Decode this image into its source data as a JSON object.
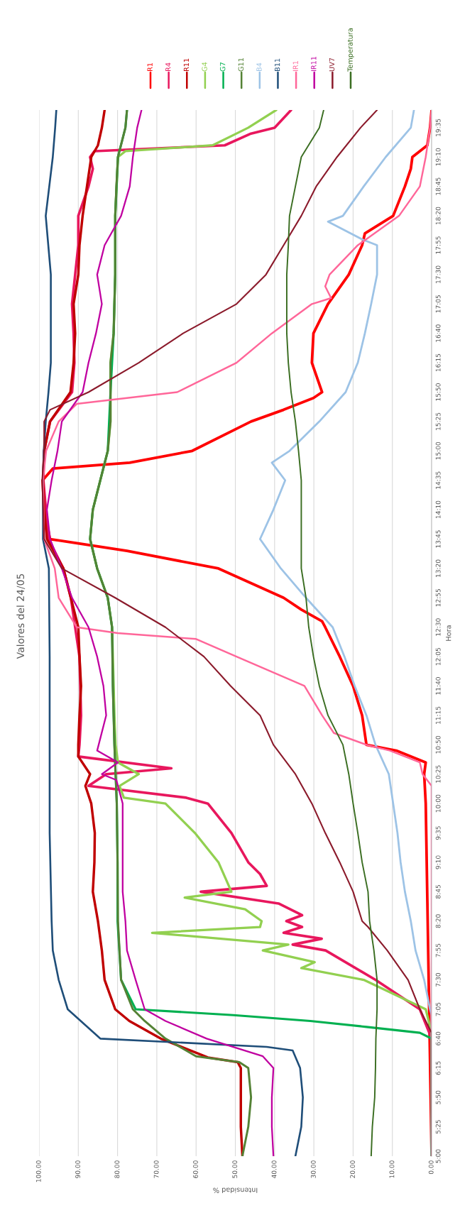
{
  "chart_data": {
    "type": "line",
    "orientation": "horizontal",
    "title": "Valores del 24/05",
    "xlabel": "Intensidad %",
    "ylabel": "Hora",
    "xlim": [
      100,
      0
    ],
    "ylim": [
      5,
      19.833
    ],
    "yticks": [
      {
        "value": 5,
        "label": "5:00"
      },
      {
        "value": 5.417,
        "label": "5:25"
      },
      {
        "value": 5.833,
        "label": "5:50"
      },
      {
        "value": 6.25,
        "label": "6:15"
      },
      {
        "value": 6.667,
        "label": "6:40"
      },
      {
        "value": 7.083,
        "label": "7:05"
      },
      {
        "value": 7.5,
        "label": "7:30"
      },
      {
        "value": 7.917,
        "label": "7:55"
      },
      {
        "value": 8.333,
        "label": "8:20"
      },
      {
        "value": 8.75,
        "label": "8:45"
      },
      {
        "value": 9.167,
        "label": "9:10"
      },
      {
        "value": 9.583,
        "label": "9:35"
      },
      {
        "value": 10,
        "label": "10:00"
      },
      {
        "value": 10.417,
        "label": "10:25"
      },
      {
        "value": 10.833,
        "label": "10:50"
      },
      {
        "value": 11.25,
        "label": "11:15"
      },
      {
        "value": 11.667,
        "label": "11:40"
      },
      {
        "value": 12.083,
        "label": "12:05"
      },
      {
        "value": 12.5,
        "label": "12:30"
      },
      {
        "value": 12.917,
        "label": "12:55"
      },
      {
        "value": 13.333,
        "label": "13:20"
      },
      {
        "value": 13.75,
        "label": "13:45"
      },
      {
        "value": 14.167,
        "label": "14:10"
      },
      {
        "value": 14.583,
        "label": "14:35"
      },
      {
        "value": 15,
        "label": "15:00"
      },
      {
        "value": 15.417,
        "label": "15:25"
      },
      {
        "value": 15.833,
        "label": "15:50"
      },
      {
        "value": 16.25,
        "label": "16:15"
      },
      {
        "value": 16.667,
        "label": "16:40"
      },
      {
        "value": 17.083,
        "label": "17:05"
      },
      {
        "value": 17.5,
        "label": "17:30"
      },
      {
        "value": 17.917,
        "label": "17:55"
      },
      {
        "value": 18.333,
        "label": "18:20"
      },
      {
        "value": 18.75,
        "label": "18:45"
      },
      {
        "value": 19.167,
        "label": "19:10"
      },
      {
        "value": 19.583,
        "label": "19:35"
      }
    ],
    "xticks": [
      {
        "value": 0,
        "label": "0.00"
      },
      {
        "value": 10,
        "label": "10.00"
      },
      {
        "value": 20,
        "label": "20.00"
      },
      {
        "value": 30,
        "label": "30.00"
      },
      {
        "value": 40,
        "label": "40.00"
      },
      {
        "value": 50,
        "label": "50.00"
      },
      {
        "value": 60,
        "label": "60.00"
      },
      {
        "value": 70,
        "label": "70.00"
      },
      {
        "value": 80,
        "label": "80.00"
      },
      {
        "value": 90,
        "label": "90.00"
      },
      {
        "value": 100,
        "label": "100.00"
      }
    ],
    "grid": "x",
    "legend": "right",
    "marker": "none",
    "line_style": "solid",
    "series": [
      {
        "name": "R1",
        "color": "#ff0000",
        "x": [
          5,
          10,
          10.417,
          10.583,
          10.75,
          10.833,
          11.25,
          11.667,
          12.083,
          12.5,
          12.583,
          12.75,
          12.917,
          13.333,
          13.583,
          13.75,
          14.167,
          14.583,
          14.75,
          14.833,
          15,
          15.417,
          15.583,
          15.75,
          15.833,
          16.25,
          16.667,
          17.083,
          17.5,
          17.917,
          18.083,
          18.333,
          18.75,
          19,
          19.167,
          19.333,
          19.583,
          19.833
        ],
        "values": [
          0,
          1.5,
          1.9,
          1.5,
          9,
          16.6,
          17.7,
          20,
          23.4,
          27.1,
          27.9,
          33.2,
          37.7,
          54.3,
          77.6,
          97.2,
          98.7,
          99.1,
          96.5,
          76.9,
          61,
          46,
          37.7,
          30.1,
          27.9,
          30.5,
          30.1,
          26.4,
          21.1,
          17.7,
          17,
          9.8,
          6.8,
          5.3,
          4.9,
          1.1,
          0.4,
          0
        ]
      },
      {
        "name": "R4",
        "color": "#e8175d",
        "x": [
          5,
          6.667,
          7.083,
          7.5,
          7.917,
          8,
          8.083,
          8.167,
          8.25,
          8.333,
          8.417,
          8.583,
          8.75,
          8.833,
          9,
          9.167,
          9.583,
          10,
          10.083,
          10.25,
          10.417,
          10.5,
          10.667,
          10.833,
          11.25,
          12.083,
          12.5,
          12.917,
          13.333,
          13.75,
          14.583,
          15,
          15.417,
          15.833,
          16.25,
          16.667,
          17.083,
          17.5,
          17.917,
          18.333,
          18.75,
          19,
          19.167,
          19.25,
          19.333,
          19.5,
          19.583,
          19.833
        ],
        "values": [
          0,
          0,
          3,
          14.3,
          27,
          35.4,
          28,
          37.7,
          33,
          37,
          33,
          39,
          58.8,
          42,
          43.7,
          46.7,
          51,
          57,
          62.5,
          87.4,
          82.9,
          66.3,
          90,
          89.7,
          89.3,
          89.7,
          90.8,
          91.9,
          93.8,
          97.6,
          98.9,
          98.7,
          97.2,
          91.6,
          91,
          91.2,
          91.6,
          90.8,
          90,
          90,
          87.4,
          86.3,
          87,
          85.9,
          52.7,
          46,
          40,
          35.8
        ]
      },
      {
        "name": "R11",
        "color": "#c00000",
        "x": [
          5,
          5.417,
          5.833,
          6.25,
          6.333,
          6.4,
          6.667,
          6.917,
          7.083,
          7.5,
          7.917,
          8.333,
          8.75,
          9.167,
          9.583,
          10,
          10.25,
          10.417,
          10.667,
          10.833,
          11.25,
          11.667,
          12.083,
          12.5,
          12.917,
          13.333,
          13.75,
          14.167,
          14.583,
          15,
          15.417,
          15.833,
          16.25,
          16.667,
          17.083,
          17.5,
          17.917,
          18.333,
          18.75,
          19.167,
          19.333,
          19.583,
          19.833
        ],
        "values": [
          48.2,
          48.6,
          48.6,
          48.6,
          49.4,
          57,
          69,
          77,
          80.6,
          83.3,
          84,
          85,
          86.3,
          85.9,
          85.8,
          86.7,
          88.2,
          87,
          90,
          90,
          89.7,
          89.3,
          89.7,
          90,
          91.9,
          93.8,
          98,
          98.7,
          99,
          98.7,
          97.2,
          92,
          91.2,
          90.8,
          91.2,
          90,
          89.7,
          88.9,
          87.8,
          86.7,
          85,
          84,
          83.3
        ]
      },
      {
        "name": "G4",
        "color": "#92d050",
        "x": [
          5,
          6.75,
          7.083,
          7.5,
          7.667,
          7.75,
          7.917,
          8,
          8.167,
          8.25,
          8.333,
          8.5,
          8.667,
          8.75,
          9.167,
          9.583,
          10,
          10.083,
          10.25,
          10.417,
          10.583,
          10.833,
          11.25,
          11.667,
          12.083,
          12.5,
          12.917,
          13.333,
          13.75,
          14.167,
          14.583,
          15,
          15.417,
          15.833,
          16.25,
          16.667,
          17.5,
          18.333,
          19.167,
          19.25,
          19.333,
          19.5,
          19.583,
          19.833
        ],
        "values": [
          0,
          0,
          1.5,
          17.3,
          33.2,
          29.8,
          43,
          36.5,
          71.2,
          43.7,
          43.3,
          47.5,
          62.9,
          51,
          54.3,
          60.3,
          67.8,
          78.4,
          79.5,
          74.6,
          79.9,
          80.5,
          80.8,
          81,
          81.2,
          81.4,
          82.5,
          85.2,
          87,
          86.3,
          84.4,
          82.5,
          81.8,
          81.8,
          81.8,
          81,
          80.6,
          80.6,
          79.9,
          78,
          55.8,
          49.7,
          46.7,
          39.6
        ]
      },
      {
        "name": "G7",
        "color": "#00b050",
        "x": [
          5,
          6.667,
          6.75,
          6.833,
          6.917,
          7,
          7.083,
          7.5,
          8.333,
          9.167,
          10,
          10.833,
          11.667,
          12.5,
          12.917,
          13.333,
          13.75,
          14.167,
          14.583,
          15,
          15.833,
          16.667,
          17.5,
          18.333,
          19.167,
          19.583,
          19.833
        ],
        "values": [
          0,
          0,
          3,
          16.6,
          30.9,
          50.5,
          75.4,
          79.1,
          80,
          80,
          80.2,
          80.8,
          81.2,
          81.4,
          82.5,
          85.2,
          87,
          86.3,
          84.4,
          82.5,
          81.8,
          81,
          80.6,
          80.6,
          79.9,
          78,
          77.6
        ]
      },
      {
        "name": "G11",
        "color": "#548235",
        "x": [
          5,
          5.417,
          5.833,
          6.25,
          6.333,
          6.417,
          6.667,
          6.917,
          7.083,
          7.5,
          7.917,
          8.333,
          9.167,
          10,
          10.833,
          11.667,
          12.5,
          12.917,
          13.333,
          13.75,
          14.167,
          14.583,
          15,
          15.417,
          15.833,
          16.25,
          16.667,
          17.5,
          18.333,
          18.75,
          19.167,
          19.583,
          19.833
        ],
        "values": [
          48.2,
          46.7,
          46,
          46.7,
          49,
          60,
          67.8,
          73.1,
          76.1,
          79.1,
          79.5,
          79.9,
          80,
          80.2,
          80.8,
          81.2,
          81.4,
          82.5,
          85.2,
          87,
          86.3,
          84.4,
          82.5,
          81.8,
          81.8,
          81.8,
          81,
          80.6,
          80.6,
          80.3,
          79.9,
          78,
          77.6
        ]
      },
      {
        "name": "B4",
        "color": "#9dc3e6",
        "x": [
          5,
          7,
          7.083,
          7.5,
          7.917,
          8.333,
          8.75,
          9.167,
          9.583,
          10,
          10.417,
          10.833,
          11.25,
          11.667,
          12.083,
          12.5,
          12.917,
          13.333,
          13.75,
          14.167,
          14.583,
          14.833,
          15,
          15.417,
          15.833,
          16.25,
          16.667,
          17.083,
          17.5,
          17.917,
          18,
          18.25,
          18.333,
          18.75,
          19.167,
          19.583,
          19.833
        ],
        "values": [
          0,
          0,
          0.4,
          1.9,
          4.1,
          5.3,
          6.8,
          7.9,
          8.7,
          9.8,
          10.9,
          14.3,
          16.6,
          19.6,
          22.2,
          25.2,
          32,
          38.4,
          43.7,
          40.3,
          37.3,
          40.7,
          36.2,
          28.6,
          21.9,
          18.8,
          17,
          15.4,
          13.9,
          13.9,
          17.7,
          26.4,
          22.6,
          17.3,
          11.7,
          5.3,
          4.5
        ]
      },
      {
        "name": "B11",
        "color": "#1f4e79",
        "x": [
          5,
          5.417,
          5.833,
          6.25,
          6.5,
          6.55,
          6.667,
          7.083,
          7.5,
          7.917,
          8.333,
          9.583,
          10.833,
          12.083,
          13.333,
          13.75,
          14.583,
          15,
          15.417,
          15.833,
          16.25,
          17.5,
          18.333,
          19.167,
          19.583,
          19.833
        ],
        "values": [
          34.7,
          33.2,
          32.8,
          33.5,
          35.4,
          42,
          84.4,
          92.7,
          95,
          96.5,
          96.8,
          97.3,
          97.3,
          97.3,
          97.5,
          99,
          99,
          98.8,
          98.3,
          97.6,
          97,
          97,
          98.3,
          96.5,
          95.9,
          95.6
        ]
      },
      {
        "name": "IR1",
        "color": "#ff6699",
        "x": [
          5,
          10.25,
          10.417,
          10.583,
          10.75,
          10.833,
          11,
          11.25,
          11.667,
          12.083,
          12.333,
          12.417,
          12.5,
          12.917,
          13.333,
          13.75,
          14.583,
          15,
          15.417,
          15.667,
          15.833,
          16.25,
          16.667,
          17.083,
          17.167,
          17.333,
          17.5,
          17.917,
          18.333,
          18.75,
          19.167,
          19.583,
          19.833
        ],
        "values": [
          0,
          0,
          2.3,
          3,
          10.6,
          16.6,
          24.9,
          27.9,
          32.4,
          49.7,
          60,
          80,
          90.4,
          95,
          96,
          98.7,
          99,
          98.2,
          95,
          90.4,
          64.8,
          49.7,
          40.7,
          30.5,
          25.6,
          27.1,
          26,
          18.8,
          8.3,
          3,
          1.5,
          0.4,
          0
        ]
      },
      {
        "name": "IR11",
        "color": "#c000a0",
        "x": [
          5,
          5.417,
          5.833,
          6.25,
          6.417,
          6.667,
          6.917,
          7.083,
          7.5,
          7.917,
          8.333,
          8.75,
          10,
          10.333,
          10.417,
          10.583,
          10.75,
          11.25,
          11.667,
          12.083,
          12.5,
          12.917,
          13.333,
          13.75,
          14.167,
          14.583,
          15,
          15.417,
          15.833,
          16.25,
          16.667,
          17.083,
          17.5,
          17.917,
          18.333,
          18.75,
          19.167,
          19.583,
          19.833
        ],
        "values": [
          40.3,
          40.7,
          40.7,
          40.3,
          43,
          57.3,
          67.8,
          73.1,
          75.4,
          77.6,
          78,
          78.7,
          78.7,
          80.3,
          84,
          79.9,
          85.2,
          82.9,
          83.6,
          85.2,
          87.4,
          91.6,
          94.2,
          97.2,
          98,
          96.8,
          95.3,
          94.2,
          88.9,
          87.4,
          85.5,
          84,
          85.2,
          83.3,
          79.1,
          76.9,
          76.1,
          75,
          73.9
        ]
      },
      {
        "name": "UV7",
        "color": "#8b1a2b",
        "x": [
          5,
          6.75,
          7.083,
          7.5,
          7.917,
          8.25,
          8.333,
          8.75,
          9.167,
          9.583,
          10,
          10.417,
          10.833,
          11.25,
          11.667,
          12.083,
          12.5,
          12.917,
          13.333,
          13.75,
          14.583,
          15,
          15.417,
          15.583,
          15.833,
          16.25,
          16.667,
          17.083,
          17.5,
          17.917,
          18.333,
          18.75,
          19.167,
          19.583,
          19.833
        ],
        "values": [
          0,
          0,
          3,
          6,
          11.3,
          16.2,
          17.7,
          20,
          23.4,
          27.1,
          30.5,
          34.7,
          40.3,
          43.7,
          51.2,
          58,
          67.8,
          80.6,
          94.2,
          98.7,
          99.2,
          98.7,
          98.7,
          97.2,
          87.4,
          74.6,
          63.3,
          49.7,
          42.2,
          37.7,
          33.2,
          29.4,
          24.1,
          18.1,
          13.9
        ]
      },
      {
        "name": "Temperatura",
        "color": "#3b6e22",
        "x": [
          5,
          5.417,
          5.833,
          6.25,
          6.667,
          7.083,
          7.5,
          7.917,
          8.333,
          8.75,
          9.167,
          9.583,
          10,
          10.417,
          10.833,
          11.25,
          11.667,
          12.083,
          12.5,
          12.917,
          13.333,
          13.75,
          14.167,
          14.583,
          15,
          15.417,
          15.833,
          16.25,
          16.667,
          17.083,
          17.5,
          17.917,
          18.333,
          18.75,
          19.167,
          19.583,
          19.833
        ],
        "values": [
          15.4,
          15.1,
          14.5,
          14.3,
          14.2,
          13.9,
          13.9,
          14.7,
          15.8,
          16.2,
          17.7,
          18.8,
          20,
          21.1,
          22.6,
          26.4,
          28.6,
          30.1,
          31.3,
          32,
          33.2,
          33.2,
          33.2,
          33.2,
          33.9,
          34.7,
          35.8,
          36.5,
          36.9,
          36.9,
          36.9,
          36.5,
          36.2,
          34.7,
          33.2,
          28.6,
          27.5
        ]
      }
    ]
  }
}
